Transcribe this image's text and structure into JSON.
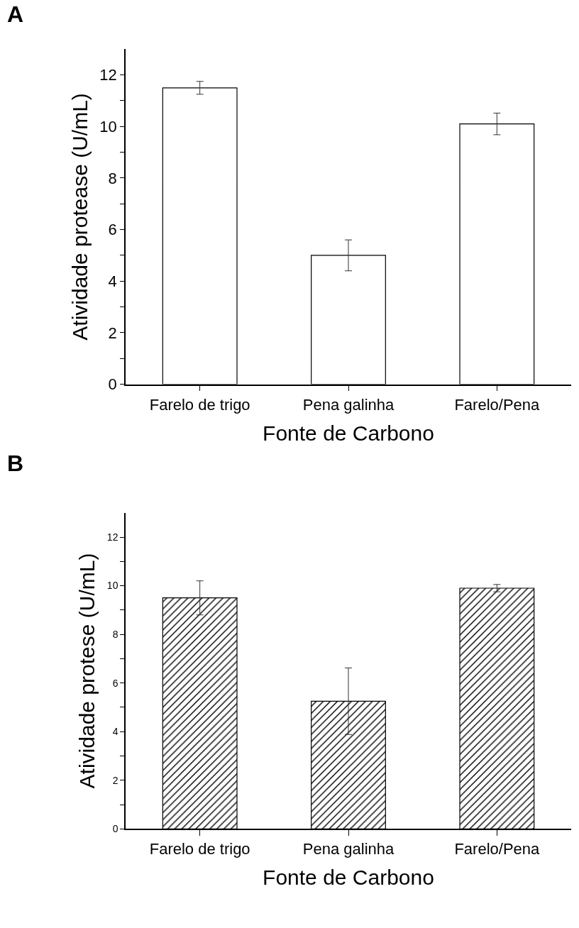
{
  "chart_data": [
    {
      "type": "bar",
      "title": "A",
      "xlabel": "Fonte de Carbono",
      "ylabel": "Atividade protease (U/mL)",
      "categories": [
        "Farelo de trigo",
        "Pena galinha",
        "Farelo/Pena"
      ],
      "values": [
        11.5,
        5.0,
        10.1
      ],
      "errors": [
        0.25,
        0.6,
        0.42
      ],
      "color": "#ffffff",
      "ylim": [
        0,
        13
      ],
      "yticks": [
        0,
        {
          "value": 1,
          "label": null
        },
        2,
        {
          "value": 3,
          "label": null
        },
        4,
        {
          "value": 5,
          "label": null
        },
        6,
        {
          "value": 7,
          "label": null
        },
        8,
        {
          "value": 9,
          "label": null
        },
        10,
        {
          "value": 11,
          "label": null
        },
        12
      ]
    },
    {
      "type": "bar",
      "title": "B",
      "xlabel": "Fonte de Carbono",
      "ylabel": "Atividade protese (U/mL)",
      "categories": [
        "Farelo de trigo",
        "Pena galinha",
        "Farelo/Pena"
      ],
      "values": [
        9.5,
        5.25,
        9.9
      ],
      "errors": [
        0.7,
        1.37,
        0.15
      ],
      "color": "#000000",
      "ylim": [
        0,
        13
      ],
      "yticks": [
        0,
        {
          "value": 1,
          "label": null
        },
        2,
        {
          "value": 3,
          "label": null
        },
        4,
        {
          "value": 5,
          "label": null
        },
        6,
        {
          "value": 7,
          "label": null
        },
        8,
        {
          "value": 9,
          "label": null
        },
        10,
        {
          "value": 11,
          "label": null
        },
        12
      ]
    }
  ]
}
